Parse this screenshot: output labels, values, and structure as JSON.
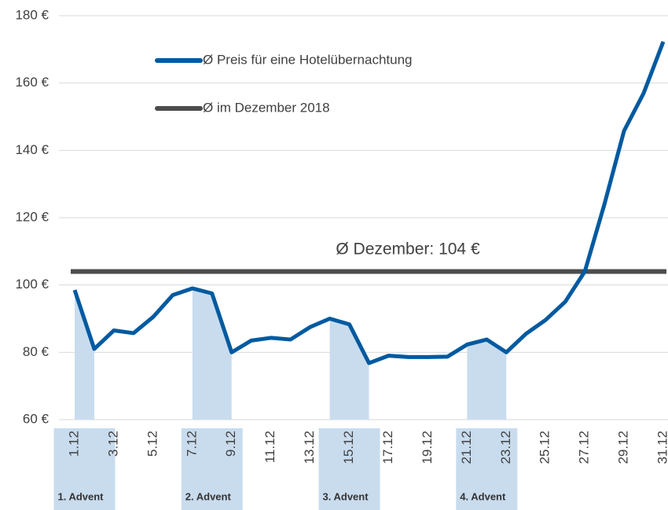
{
  "chart_data": {
    "type": "line",
    "categories": [
      "1.12",
      null,
      "3.12",
      null,
      "5.12",
      null,
      "7.12",
      null,
      "9.12",
      null,
      "11.12",
      null,
      "13.12",
      null,
      "15.12",
      null,
      "17.12",
      null,
      "19.12",
      null,
      "21.12",
      null,
      "23.12",
      null,
      "25.12",
      null,
      "27.12",
      null,
      "29.12",
      null,
      "31.12"
    ],
    "series": [
      {
        "name": "Ø Preis für eine Hotelübernachtung",
        "color": "#005aa0",
        "values": [
          98.5,
          81,
          86.5,
          85.7,
          90.5,
          97,
          99,
          97.5,
          80,
          83.5,
          84.3,
          83.8,
          87.5,
          90,
          88.3,
          76.8,
          79,
          78.6,
          78.6,
          78.7,
          82.3,
          83.8,
          80,
          85.5,
          89.6,
          95,
          104,
          124,
          145.8,
          157,
          172.3
        ]
      },
      {
        "name": "Ø im Dezember 2018",
        "color": "#4d4d4d",
        "value": 104
      }
    ],
    "annotation": "Ø Dezember: 104 €",
    "highlights": [
      {
        "label": "1. Advent",
        "range": [
          0,
          1
        ]
      },
      {
        "label": "2. Advent",
        "range": [
          6,
          8
        ]
      },
      {
        "label": "3. Advent",
        "range": [
          13,
          15
        ]
      },
      {
        "label": "4. Advent",
        "range": [
          20,
          22
        ]
      }
    ],
    "highlight_color": "#c9dcee",
    "ylim": [
      60,
      180
    ],
    "yticks": [
      {
        "value": 60,
        "label": "60 €"
      },
      {
        "value": 80,
        "label": "80 €"
      },
      {
        "value": 100,
        "label": "100 €"
      },
      {
        "value": 120,
        "label": "120 €"
      },
      {
        "value": 140,
        "label": "140 €"
      },
      {
        "value": 160,
        "label": "160 €"
      },
      {
        "value": 180,
        "label": "180 €"
      }
    ],
    "grid": true
  }
}
